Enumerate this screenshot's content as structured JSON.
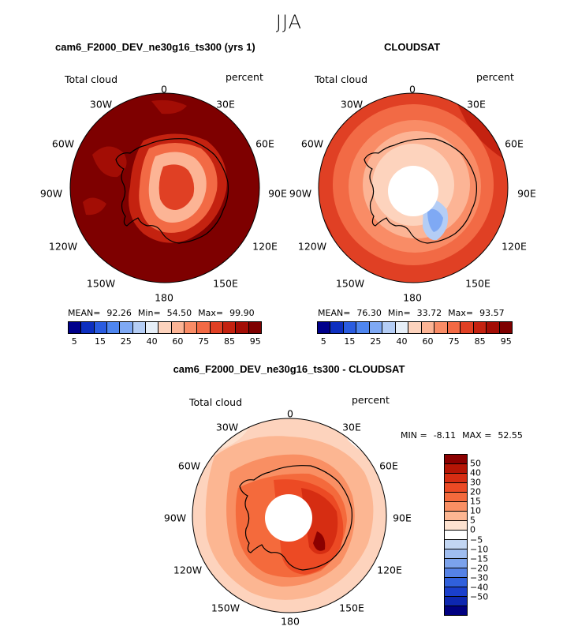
{
  "page": {
    "title": "JJA"
  },
  "chart_data": [
    {
      "type": "heatmap",
      "title": "cam6_F2000_DEV_ne30g16_ts300 (yrs 1)",
      "variable": "Total cloud",
      "units": "percent",
      "projection": "south-polar stereographic",
      "lon_labels": [
        "0",
        "30E",
        "60E",
        "90E",
        "120E",
        "150E",
        "180",
        "150W",
        "120W",
        "90W",
        "60W",
        "30W"
      ],
      "stats": {
        "mean_label": "MEAN=",
        "mean": "92.26",
        "min_label": "Min=",
        "min": "54.50",
        "max_label": "Max=",
        "max": "99.90"
      },
      "colorbar": {
        "colors": [
          "#00008b",
          "#0d2fbf",
          "#2a5ce0",
          "#4f86ef",
          "#7fa9f4",
          "#b4cdf5",
          "#e6eef7",
          "#fdd3bd",
          "#fcb495",
          "#f98c66",
          "#f26a45",
          "#e04024",
          "#c42210",
          "#a30d05",
          "#7e0000"
        ],
        "ticks": [
          "5",
          "15",
          "25",
          "40",
          "60",
          "75",
          "85",
          "95"
        ]
      }
    },
    {
      "type": "heatmap",
      "title": "CLOUDSAT",
      "variable": "Total cloud",
      "units": "percent",
      "projection": "south-polar stereographic",
      "lon_labels": [
        "0",
        "30E",
        "60E",
        "90E",
        "120E",
        "150E",
        "180",
        "150W",
        "120W",
        "90W",
        "60W",
        "30W"
      ],
      "stats": {
        "mean_label": "MEAN=",
        "mean": "76.30",
        "min_label": "Min=",
        "min": "33.72",
        "max_label": "Max=",
        "max": "93.57"
      },
      "colorbar": {
        "colors": [
          "#00008b",
          "#0d2fbf",
          "#2a5ce0",
          "#4f86ef",
          "#7fa9f4",
          "#b4cdf5",
          "#e6eef7",
          "#fdd3bd",
          "#fcb495",
          "#f98c66",
          "#f26a45",
          "#e04024",
          "#c42210",
          "#a30d05",
          "#7e0000"
        ],
        "ticks": [
          "5",
          "15",
          "25",
          "40",
          "60",
          "75",
          "85",
          "95"
        ]
      }
    },
    {
      "type": "heatmap",
      "title": "cam6_F2000_DEV_ne30g16_ts300 - CLOUDSAT",
      "variable": "Total cloud",
      "units": "percent",
      "projection": "south-polar stereographic",
      "lon_labels": [
        "0",
        "30E",
        "60E",
        "90E",
        "120E",
        "150E",
        "180",
        "150W",
        "120W",
        "90W",
        "60W",
        "30W"
      ],
      "stats": {
        "min_label": "MIN =",
        "min": "-8.11",
        "max_label": "MAX =",
        "max": "52.55"
      },
      "colorbar": {
        "colors": [
          "#8b0000",
          "#b51505",
          "#d62d12",
          "#ec4a24",
          "#f46a3c",
          "#f98f63",
          "#fcb692",
          "#fde2d0",
          "#ffffff",
          "#c2d6f3",
          "#9fbdf0",
          "#7ba2ec",
          "#5582e6",
          "#3060dc",
          "#1a3fcc",
          "#0d27b0",
          "#000080"
        ],
        "ticks": [
          "50",
          "40",
          "30",
          "20",
          "15",
          "10",
          "5",
          "0",
          "−5",
          "−10",
          "−15",
          "−20",
          "−30",
          "−40",
          "−50"
        ]
      }
    }
  ]
}
